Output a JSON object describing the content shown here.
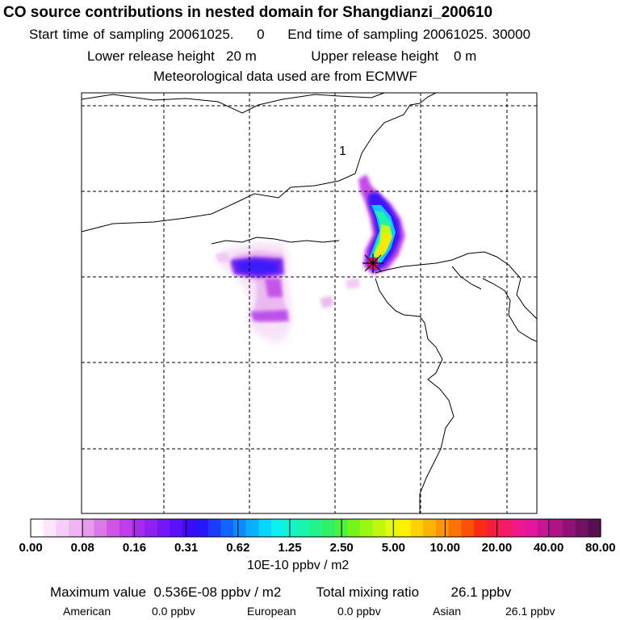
{
  "header": {
    "title": "CO  source contributions in nested domain for Shangdianzi_200610",
    "start_label": "Start time of sampling",
    "start_value": "20061025.     0",
    "end_label": "End time of sampling",
    "end_value": "20061025. 30000",
    "lower_label": "Lower release height",
    "lower_value": "20 m",
    "upper_label": "Upper release height",
    "upper_value": "0 m",
    "met_line": "Meteorological data used are from ECMWF"
  },
  "map": {
    "contour_label": "1",
    "release_marker_color": "#e0106a"
  },
  "colorbar": {
    "colors": [
      "#ffffff",
      "#fbe6fb",
      "#f6cdf6",
      "#efb4f1",
      "#e89aec",
      "#dc78e8",
      "#cf55e6",
      "#c23cea",
      "#a82af0",
      "#8f20f2",
      "#7516f4",
      "#5a10f8",
      "#3f0afb",
      "#2a14fc",
      "#1a3cff",
      "#1064ff",
      "#0c8aff",
      "#08b0ff",
      "#08d6ff",
      "#0cf0f0",
      "#12f4d0",
      "#18f6ae",
      "#20f48a",
      "#30f066",
      "#4cf23c",
      "#72f618",
      "#98f810",
      "#bef80a",
      "#e4f808",
      "#fcf004",
      "#fcd204",
      "#fcb404",
      "#fc9404",
      "#fc7404",
      "#fc5004",
      "#fc2c14",
      "#f81c40",
      "#f41a66",
      "#f0188a",
      "#e416a0",
      "#c81498",
      "#ac1488",
      "#901278",
      "#741064",
      "#581050"
    ],
    "ticks": [
      "0.00",
      "0.08",
      "0.16",
      "0.31",
      "0.62",
      "1.25",
      "2.50",
      "5.00",
      "10.00",
      "20.00",
      "40.00",
      "80.00"
    ],
    "units": "10E-10 ppbv / m2"
  },
  "summary": {
    "max_label": "Maximum value",
    "max_value": "0.536E-08 ppbv / m2",
    "total_label": "Total mixing ratio",
    "total_value": "26.1 ppbv",
    "regions": [
      {
        "name": "American",
        "value": "0.0 ppbv"
      },
      {
        "name": "European",
        "value": "0.0 ppbv"
      },
      {
        "name": "Asian",
        "value": "26.1 ppbv"
      }
    ]
  }
}
